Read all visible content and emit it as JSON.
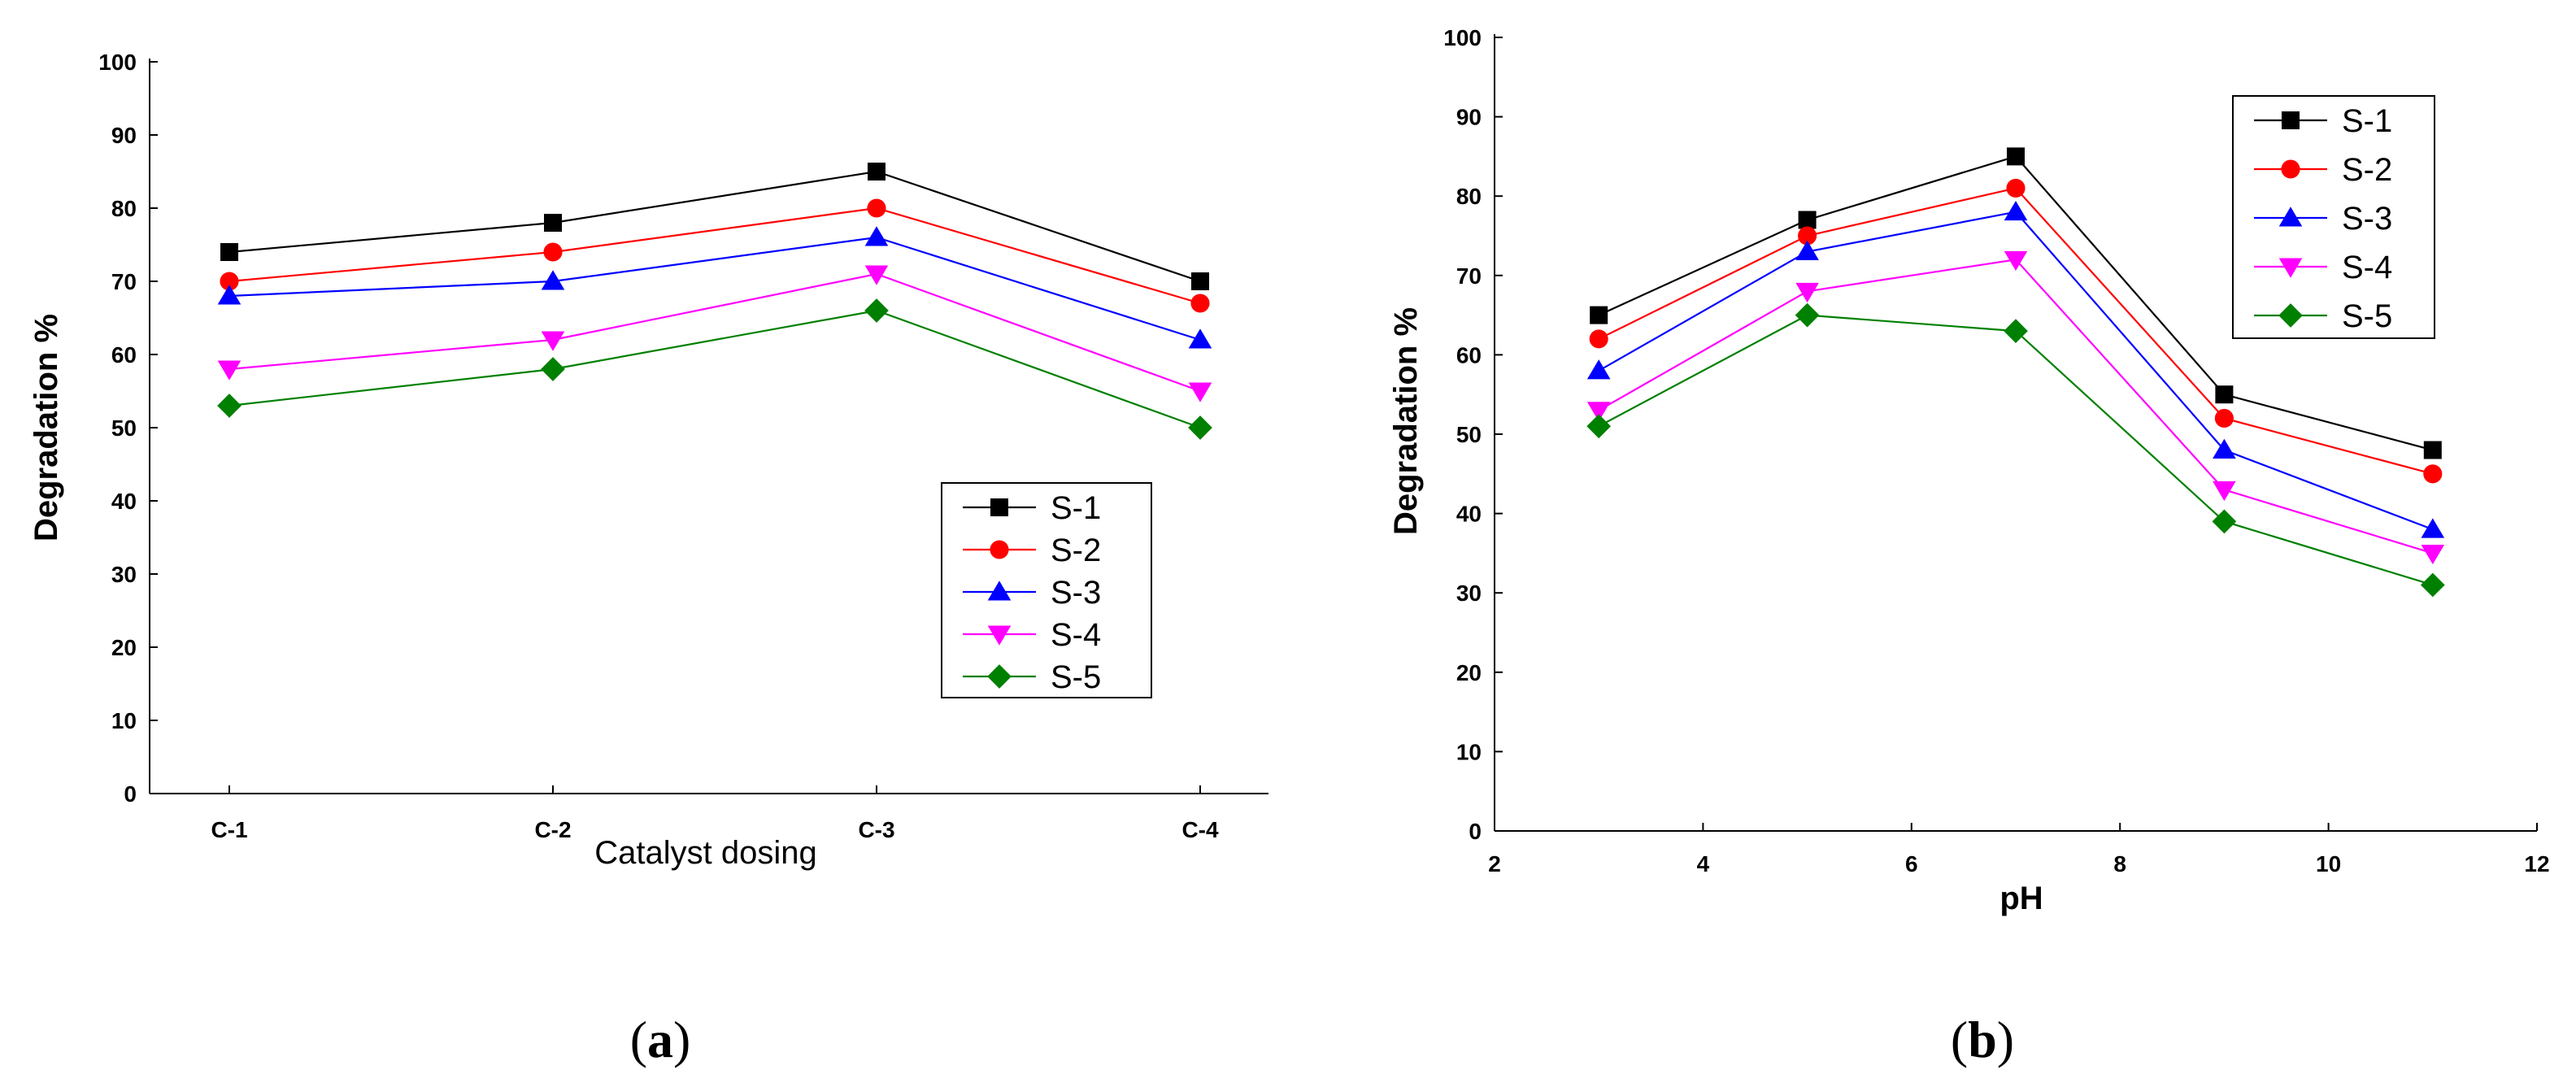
{
  "chart_data": [
    {
      "type": "line",
      "panel_label": "(a)",
      "panel_label_parts": {
        "open": "(",
        "letter": "a",
        "close": ")"
      },
      "categories": [
        "C-1",
        "C-2",
        "C-3",
        "C-4"
      ],
      "xlabel": "Catalyst dosing",
      "ylabel": "Degradation %",
      "ylim": [
        0,
        100
      ],
      "yticks": [
        "0",
        "10",
        "20",
        "30",
        "40",
        "50",
        "60",
        "70",
        "80",
        "90",
        "100"
      ],
      "legend_position": "bottom-right",
      "grid": false,
      "series": [
        {
          "name": "S-1",
          "color": "#000000",
          "marker": "square",
          "values": [
            74,
            78,
            85,
            70
          ]
        },
        {
          "name": "S-2",
          "color": "#ff0000",
          "marker": "circle",
          "values": [
            70,
            74,
            80,
            67
          ]
        },
        {
          "name": "S-3",
          "color": "#0000ff",
          "marker": "triangle-up",
          "values": [
            68,
            70,
            76,
            62
          ]
        },
        {
          "name": "S-4",
          "color": "#ff00ff",
          "marker": "triangle-down",
          "values": [
            58,
            62,
            71,
            55
          ]
        },
        {
          "name": "S-5",
          "color": "#008000",
          "marker": "diamond",
          "values": [
            53,
            58,
            66,
            50
          ]
        }
      ]
    },
    {
      "type": "line",
      "panel_label": "(b)",
      "panel_label_parts": {
        "open": "(",
        "letter": "b",
        "close": ")"
      },
      "x": [
        3,
        5,
        7,
        9,
        11
      ],
      "xlabel": "pH",
      "ylabel": "Degradation %",
      "xlim": [
        2,
        12
      ],
      "xticks": [
        "2",
        "4",
        "6",
        "8",
        "10",
        "12"
      ],
      "ylim": [
        0,
        100
      ],
      "yticks": [
        "0",
        "10",
        "20",
        "30",
        "40",
        "50",
        "60",
        "70",
        "80",
        "90",
        "100"
      ],
      "legend_position": "top-right",
      "grid": false,
      "series": [
        {
          "name": "S-1",
          "color": "#000000",
          "marker": "square",
          "values": [
            65,
            77,
            85,
            55,
            48
          ]
        },
        {
          "name": "S-2",
          "color": "#ff0000",
          "marker": "circle",
          "values": [
            62,
            75,
            81,
            52,
            45
          ]
        },
        {
          "name": "S-3",
          "color": "#0000ff",
          "marker": "triangle-up",
          "values": [
            58,
            73,
            78,
            48,
            38
          ]
        },
        {
          "name": "S-4",
          "color": "#ff00ff",
          "marker": "triangle-down",
          "values": [
            53,
            68,
            72,
            43,
            35
          ]
        },
        {
          "name": "S-5",
          "color": "#008000",
          "marker": "diamond",
          "values": [
            51,
            65,
            63,
            39,
            31
          ]
        }
      ]
    }
  ]
}
